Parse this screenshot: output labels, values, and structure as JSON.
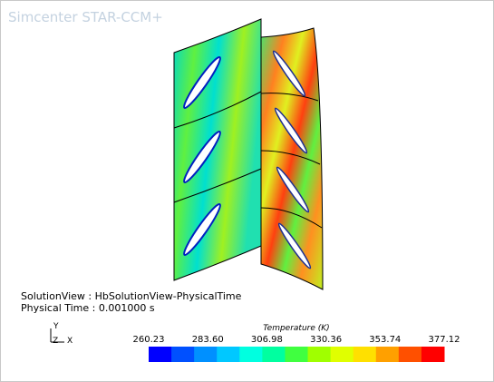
{
  "app_title": "Simcenter STAR-CCM+",
  "view": {
    "solution_view": "SolutionView : HbSolutionView-PhysicalTime",
    "physical_time": "Physical Time : 0.001000 s"
  },
  "triad": {
    "y": "Y",
    "z": "Z",
    "x": "X"
  },
  "colorbar": {
    "title": "Temperature (K)",
    "ticks": [
      "260.23",
      "283.60",
      "306.98",
      "330.36",
      "353.74",
      "377.12"
    ]
  }
}
